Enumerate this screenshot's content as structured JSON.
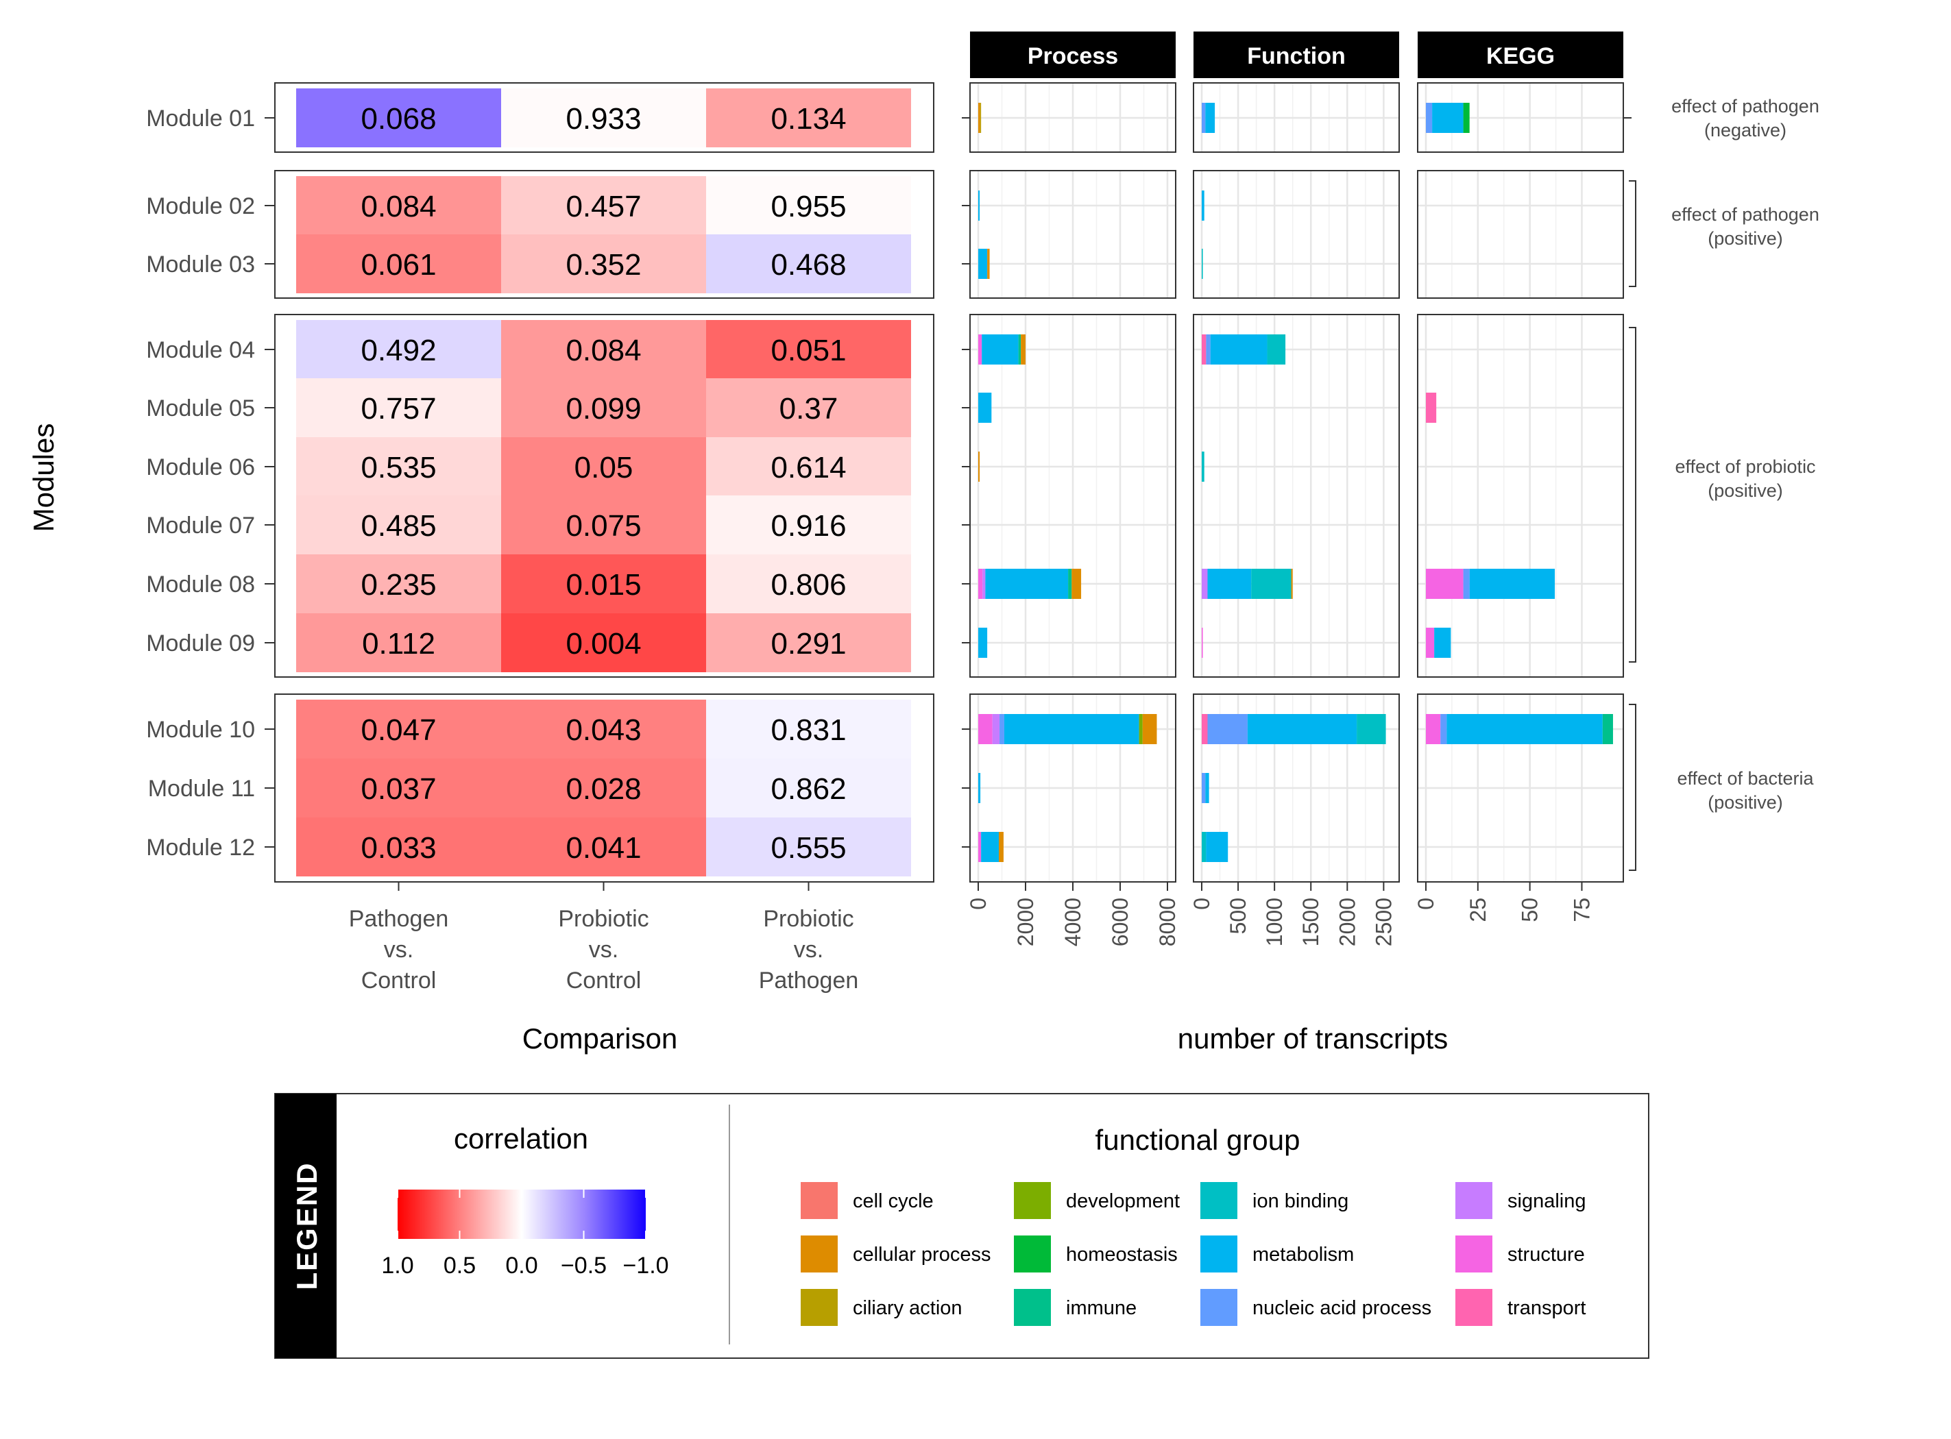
{
  "chart_data": {
    "type": "heatmap",
    "xlabel": "Comparison",
    "ylabel": "Modules",
    "comparisons": [
      [
        "Pathogen",
        "vs.",
        "Control"
      ],
      [
        "Probiotic",
        "vs.",
        "Control"
      ],
      [
        "Probiotic",
        "vs.",
        "Pathogen"
      ]
    ],
    "modules": [
      "Module 01",
      "Module 02",
      "Module 03",
      "Module 04",
      "Module 05",
      "Module 06",
      "Module 07",
      "Module 08",
      "Module 09",
      "Module 10",
      "Module 11",
      "Module 12"
    ],
    "groups": [
      {
        "label": [
          "effect of pathogen",
          "(negative)"
        ],
        "modules": [
          0
        ]
      },
      {
        "label": [
          "effect of pathogen",
          "(positive)"
        ],
        "modules": [
          1,
          2
        ]
      },
      {
        "label": [
          "effect of probiotic",
          "(positive)"
        ],
        "modules": [
          3,
          4,
          5,
          6,
          7,
          8
        ]
      },
      {
        "label": [
          "effect of bacteria",
          "(positive)"
        ],
        "modules": [
          9,
          10,
          11
        ]
      }
    ],
    "values": [
      [
        "0.068",
        "0.933",
        "0.134"
      ],
      [
        "0.084",
        "0.457",
        "0.955"
      ],
      [
        "0.061",
        "0.352",
        "0.468"
      ],
      [
        "0.492",
        "0.084",
        "0.051"
      ],
      [
        "0.757",
        "0.099",
        "0.37"
      ],
      [
        "0.535",
        "0.05",
        "0.614"
      ],
      [
        "0.485",
        "0.075",
        "0.916"
      ],
      [
        "0.235",
        "0.015",
        "0.806"
      ],
      [
        "0.112",
        "0.004",
        "0.291"
      ],
      [
        "0.047",
        "0.043",
        "0.831"
      ],
      [
        "0.037",
        "0.028",
        "0.862"
      ],
      [
        "0.033",
        "0.041",
        "0.555"
      ]
    ],
    "correlation": [
      [
        -0.6,
        0.02,
        0.36
      ],
      [
        0.42,
        0.2,
        0.02
      ],
      [
        0.48,
        0.25,
        -0.18
      ],
      [
        -0.17,
        0.4,
        0.6
      ],
      [
        0.08,
        0.4,
        0.3
      ],
      [
        0.15,
        0.48,
        0.16
      ],
      [
        0.16,
        0.48,
        0.05
      ],
      [
        0.3,
        0.66,
        0.09
      ],
      [
        0.4,
        0.72,
        0.32
      ],
      [
        0.5,
        0.5,
        -0.05
      ],
      [
        0.52,
        0.52,
        -0.06
      ],
      [
        0.55,
        0.55,
        -0.14
      ]
    ],
    "bars": {
      "xlabel": "number of transcripts",
      "panels": [
        {
          "title": "Process",
          "xlim": [
            0,
            8000
          ],
          "ticks": [
            "0",
            "2000",
            "4000",
            "6000",
            "8000"
          ],
          "data": [
            [
              [
                "cellular process",
                80
              ],
              [
                "ciliary action",
                40
              ]
            ],
            [
              [
                "metabolism",
                60
              ]
            ],
            [
              [
                "metabolism",
                380
              ],
              [
                "cellular process",
                100
              ]
            ],
            [
              [
                "structure",
                150
              ],
              [
                "metabolism",
                1550
              ],
              [
                "immune",
                100
              ],
              [
                "cellular process",
                200
              ]
            ],
            [
              [
                "metabolism",
                560
              ]
            ],
            [
              [
                "cellular process",
                60
              ]
            ],
            [],
            [
              [
                "structure",
                180
              ],
              [
                "signaling",
                120
              ],
              [
                "metabolism",
                3500
              ],
              [
                "immune",
                150
              ],
              [
                "cellular process",
                400
              ]
            ],
            [
              [
                "metabolism",
                380
              ]
            ],
            [
              [
                "structure",
                600
              ],
              [
                "signaling",
                300
              ],
              [
                "nucleic acid process",
                200
              ],
              [
                "metabolism",
                5700
              ],
              [
                "development",
                150
              ],
              [
                "cellular process",
                600
              ]
            ],
            [
              [
                "metabolism",
                90
              ]
            ],
            [
              [
                "structure",
                120
              ],
              [
                "metabolism",
                750
              ],
              [
                "cellular process",
                200
              ]
            ]
          ]
        },
        {
          "title": "Function",
          "xlim": [
            0,
            2600
          ],
          "ticks": [
            "0",
            "500",
            "1000",
            "1500",
            "2000",
            "2500"
          ],
          "data": [
            [
              [
                "nucleic acid process",
                50
              ],
              [
                "metabolism",
                130
              ]
            ],
            [
              [
                "metabolism",
                35
              ]
            ],
            [
              [
                "ion binding",
                15
              ]
            ],
            [
              [
                "transport",
                60
              ],
              [
                "nucleic acid process",
                60
              ],
              [
                "metabolism",
                780
              ],
              [
                "ion binding",
                250
              ]
            ],
            [],
            [
              [
                "ion binding",
                35
              ]
            ],
            [],
            [
              [
                "signaling",
                80
              ],
              [
                "metabolism",
                600
              ],
              [
                "ion binding",
                550
              ],
              [
                "cellular process",
                20
              ]
            ],
            [
              [
                "structure",
                15
              ]
            ],
            [
              [
                "transport",
                80
              ],
              [
                "nucleic acid process",
                550
              ],
              [
                "metabolism",
                1500
              ],
              [
                "ion binding",
                400
              ]
            ],
            [
              [
                "nucleic acid process",
                50
              ],
              [
                "metabolism",
                50
              ]
            ],
            [
              [
                "ion binding",
                60
              ],
              [
                "metabolism",
                300
              ]
            ]
          ]
        },
        {
          "title": "KEGG",
          "xlim": [
            0,
            91
          ],
          "ticks": [
            "0",
            "25",
            "50",
            "75"
          ],
          "data": [
            [
              [
                "nucleic acid process",
                3
              ],
              [
                "metabolism",
                15
              ],
              [
                "homeostasis",
                3
              ]
            ],
            [],
            [],
            [],
            [
              [
                "transport",
                5
              ]
            ],
            [],
            [],
            [
              [
                "structure",
                18
              ],
              [
                "nucleic acid process",
                3
              ],
              [
                "metabolism",
                41
              ]
            ],
            [
              [
                "structure",
                4
              ],
              [
                "metabolism",
                8
              ]
            ],
            [
              [
                "structure",
                7
              ],
              [
                "nucleic acid process",
                3
              ],
              [
                "metabolism",
                75
              ],
              [
                "immune",
                5
              ]
            ],
            [],
            []
          ]
        }
      ]
    },
    "legend": {
      "label": "LEGEND",
      "correlation_title": "correlation",
      "correlation_ticks": [
        "1.0",
        "0.5",
        "0.0",
        "−0.5",
        "−1.0"
      ],
      "functional_title": "functional group",
      "functional_groups": [
        {
          "name": "cell cycle",
          "color": "#F8766D"
        },
        {
          "name": "cellular process",
          "color": "#DE8C00"
        },
        {
          "name": "ciliary action",
          "color": "#B79F00"
        },
        {
          "name": "development",
          "color": "#7CAE00"
        },
        {
          "name": "homeostasis",
          "color": "#00BA38"
        },
        {
          "name": "immune",
          "color": "#00C08B"
        },
        {
          "name": "ion binding",
          "color": "#00BFC4"
        },
        {
          "name": "metabolism",
          "color": "#00B4F0"
        },
        {
          "name": "nucleic acid process",
          "color": "#619CFF"
        },
        {
          "name": "signaling",
          "color": "#C77CFF"
        },
        {
          "name": "structure",
          "color": "#F564E3"
        },
        {
          "name": "transport",
          "color": "#FF64B0"
        }
      ]
    }
  }
}
